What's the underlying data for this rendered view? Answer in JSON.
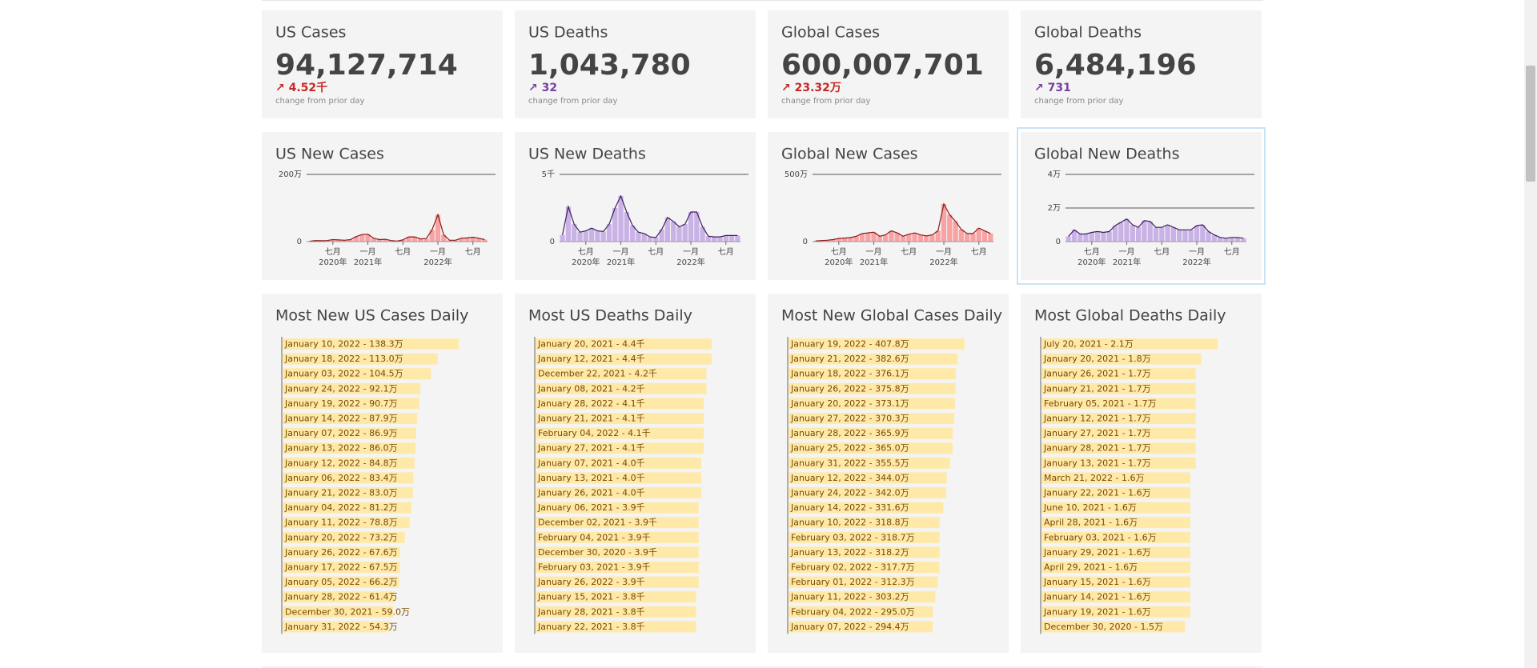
{
  "kpis": [
    {
      "title": "US Cases",
      "value": "94,127,714",
      "change": "↗ 4.52千",
      "note": "change from prior day",
      "color": "#c62828"
    },
    {
      "title": "US Deaths",
      "value": "1,043,780",
      "change": "↗ 32",
      "note": "change from prior day",
      "color": "#7b3fa0"
    },
    {
      "title": "Global Cases",
      "value": "600,007,701",
      "change": "↗ 23.32万",
      "note": "change from prior day",
      "color": "#c62828"
    },
    {
      "title": "Global Deaths",
      "value": "6,484,196",
      "change": "↗ 731",
      "note": "change from prior day",
      "color": "#7b3fa0"
    }
  ],
  "chart_data": [
    {
      "type": "bar",
      "title": "US New Cases",
      "color": "#f7a3a3",
      "line_color": "#8b1a1a",
      "x": [
        "2020-03",
        "2020-04",
        "2020-05",
        "2020-06",
        "2020-07",
        "2020-08",
        "2020-09",
        "2020-10",
        "2020-11",
        "2020-12",
        "2021-01",
        "2021-02",
        "2021-03",
        "2021-04",
        "2021-05",
        "2021-06",
        "2021-07",
        "2021-08",
        "2021-09",
        "2021-10",
        "2021-11",
        "2021-12",
        "2022-01",
        "2022-02",
        "2022-03",
        "2022-04",
        "2022-05",
        "2022-06",
        "2022-07",
        "2022-08",
        "2022-09"
      ],
      "values": [
        1,
        3,
        2.5,
        3,
        6,
        5,
        4,
        6,
        15,
        21,
        22,
        10,
        6,
        7,
        3,
        1.5,
        5,
        14,
        14,
        8,
        9,
        35,
        80,
        20,
        4,
        4,
        10,
        11,
        13,
        10,
        6
      ],
      "ylim": [
        0,
        200
      ],
      "yticks": [
        0,
        {
          "value": 200,
          "label": "200万"
        }
      ],
      "xticks": [
        {
          "value": "2020-07",
          "label": "七月",
          "year": "2020年"
        },
        {
          "value": "2021-01",
          "label": "一月",
          "year": "2021年"
        },
        {
          "value": "2021-07",
          "label": "七月"
        },
        {
          "value": "2022-01",
          "label": "一月",
          "year": "2022年"
        },
        {
          "value": "2022-07",
          "label": "七月"
        }
      ]
    },
    {
      "type": "bar",
      "title": "US New Deaths",
      "color": "#c9b3e6",
      "line_color": "#3d1f5c",
      "x": [
        "2020-03",
        "2020-04",
        "2020-05",
        "2020-06",
        "2020-07",
        "2020-08",
        "2020-09",
        "2020-10",
        "2020-11",
        "2020-12",
        "2021-01",
        "2021-02",
        "2021-03",
        "2021-04",
        "2021-05",
        "2021-06",
        "2021-07",
        "2021-08",
        "2021-09",
        "2021-10",
        "2021-11",
        "2021-12",
        "2022-01",
        "2022-02",
        "2022-03",
        "2022-04",
        "2022-05",
        "2022-06",
        "2022-07",
        "2022-08",
        "2022-09"
      ],
      "values": [
        0.5,
        2.6,
        1.3,
        0.7,
        0.8,
        1.0,
        0.8,
        0.75,
        1.3,
        2.5,
        3.4,
        2.2,
        1.2,
        0.7,
        0.6,
        0.35,
        0.3,
        0.9,
        1.8,
        1.5,
        1.1,
        1.3,
        2.2,
        2.2,
        1.1,
        0.4,
        0.35,
        0.35,
        0.45,
        0.45,
        0.45
      ],
      "ylim": [
        0,
        5
      ],
      "yticks": [
        0,
        {
          "value": 5,
          "label": "5千"
        }
      ],
      "xticks": [
        {
          "value": "2020-07",
          "label": "七月",
          "year": "2020年"
        },
        {
          "value": "2021-01",
          "label": "一月",
          "year": "2021年"
        },
        {
          "value": "2021-07",
          "label": "七月"
        },
        {
          "value": "2022-01",
          "label": "一月",
          "year": "2022年"
        },
        {
          "value": "2022-07",
          "label": "七月"
        }
      ]
    },
    {
      "type": "bar",
      "title": "Global New Cases",
      "color": "#f7a3a3",
      "line_color": "#8b1a1a",
      "x": [
        "2020-03",
        "2020-04",
        "2020-05",
        "2020-06",
        "2020-07",
        "2020-08",
        "2020-09",
        "2020-10",
        "2020-11",
        "2020-12",
        "2021-01",
        "2021-02",
        "2021-03",
        "2021-04",
        "2021-05",
        "2021-06",
        "2021-07",
        "2021-08",
        "2021-09",
        "2021-10",
        "2021-11",
        "2021-12",
        "2022-01",
        "2022-02",
        "2022-03",
        "2022-04",
        "2022-05",
        "2022-06",
        "2022-07",
        "2022-08",
        "2022-09"
      ],
      "values": [
        5,
        8,
        10,
        15,
        24,
        26,
        30,
        40,
        60,
        65,
        70,
        40,
        50,
        80,
        65,
        40,
        55,
        65,
        50,
        42,
        50,
        80,
        280,
        200,
        150,
        90,
        60,
        60,
        100,
        80,
        60
      ],
      "ylim": [
        0,
        500
      ],
      "yticks": [
        0,
        {
          "value": 500,
          "label": "500万"
        }
      ],
      "xticks": [
        {
          "value": "2020-07",
          "label": "七月",
          "year": "2020年"
        },
        {
          "value": "2021-01",
          "label": "一月",
          "year": "2021年"
        },
        {
          "value": "2021-07",
          "label": "七月"
        },
        {
          "value": "2022-01",
          "label": "一月",
          "year": "2022年"
        },
        {
          "value": "2022-07",
          "label": "七月"
        }
      ]
    },
    {
      "type": "bar",
      "title": "Global New Deaths",
      "color": "#c9b3e6",
      "line_color": "#3d1f5c",
      "x": [
        "2020-03",
        "2020-04",
        "2020-05",
        "2020-06",
        "2020-07",
        "2020-08",
        "2020-09",
        "2020-10",
        "2020-11",
        "2020-12",
        "2021-01",
        "2021-02",
        "2021-03",
        "2021-04",
        "2021-05",
        "2021-06",
        "2021-07",
        "2021-08",
        "2021-09",
        "2021-10",
        "2021-11",
        "2021-12",
        "2022-01",
        "2022-02",
        "2022-03",
        "2022-04",
        "2022-05",
        "2022-06",
        "2022-07",
        "2022-08",
        "2022-09"
      ],
      "values": [
        0.3,
        0.7,
        0.45,
        0.45,
        0.55,
        0.6,
        0.55,
        0.6,
        0.95,
        1.15,
        1.35,
        1.0,
        0.85,
        1.25,
        1.2,
        0.85,
        0.85,
        1.0,
        0.85,
        0.7,
        0.7,
        0.7,
        0.95,
        1.0,
        0.6,
        0.4,
        0.25,
        0.2,
        0.25,
        0.25,
        0.2
      ],
      "ylim": [
        0,
        4
      ],
      "yticks": [
        0,
        {
          "value": 2,
          "label": "2万"
        },
        {
          "value": 4,
          "label": "4万"
        }
      ],
      "xticks": [
        {
          "value": "2020-07",
          "label": "七月",
          "year": "2020年"
        },
        {
          "value": "2021-01",
          "label": "一月",
          "year": "2021年"
        },
        {
          "value": "2021-07",
          "label": "七月"
        },
        {
          "value": "2022-01",
          "label": "一月",
          "year": "2022年"
        },
        {
          "value": "2022-07",
          "label": "七月"
        }
      ]
    },
    {
      "type": "hbar",
      "title": "Most New US Cases Daily",
      "color": "#ffe9a8",
      "categories": [
        "January 10, 2022 - 138.3万",
        "January 18, 2022 - 113.0万",
        "January 03, 2022 - 104.5万",
        "January 24, 2022 - 92.1万",
        "January 19, 2022 - 90.7万",
        "January 14, 2022 - 87.9万",
        "January 07, 2022 - 86.9万",
        "January 13, 2022 - 86.0万",
        "January 12, 2022 - 84.8万",
        "January 06, 2022 - 83.4万",
        "January 21, 2022 - 83.0万",
        "January 04, 2022 - 81.2万",
        "January 11, 2022 - 78.8万",
        "January 20, 2022 - 73.2万",
        "January 26, 2022 - 67.6万",
        "January 17, 2022 - 67.5万",
        "January 05, 2022 - 66.2万",
        "January 28, 2022 - 61.4万",
        "December 30, 2021 - 59.0万",
        "January 31, 2022 - 54.3万"
      ],
      "values": [
        138.3,
        113.0,
        104.5,
        92.1,
        90.7,
        87.9,
        86.9,
        86.0,
        84.8,
        83.4,
        83.0,
        81.2,
        78.8,
        73.2,
        67.6,
        67.5,
        66.2,
        61.4,
        59.0,
        54.3
      ]
    },
    {
      "type": "hbar",
      "title": "Most US Deaths Daily",
      "color": "#ffe9a8",
      "categories": [
        "January 20, 2021 - 4.4千",
        "January 12, 2021 - 4.4千",
        "December 22, 2021 - 4.2千",
        "January 08, 2021 - 4.2千",
        "January 28, 2022 - 4.1千",
        "January 21, 2021 - 4.1千",
        "February 04, 2022 - 4.1千",
        "January 27, 2021 - 4.1千",
        "January 07, 2021 - 4.0千",
        "January 13, 2021 - 4.0千",
        "January 26, 2021 - 4.0千",
        "January 06, 2021 - 3.9千",
        "December 02, 2021 - 3.9千",
        "February 04, 2021 - 3.9千",
        "December 30, 2020 - 3.9千",
        "February 03, 2021 - 3.9千",
        "January 26, 2022 - 3.9千",
        "January 15, 2021 - 3.8千",
        "January 28, 2021 - 3.8千",
        "January 22, 2021 - 3.8千"
      ],
      "values": [
        4.4,
        4.4,
        4.2,
        4.2,
        4.1,
        4.1,
        4.1,
        4.1,
        4.0,
        4.0,
        4.0,
        3.9,
        3.9,
        3.9,
        3.9,
        3.9,
        3.9,
        3.8,
        3.8,
        3.8
      ]
    },
    {
      "type": "hbar",
      "title": "Most New Global Cases Daily",
      "color": "#ffe9a8",
      "categories": [
        "January 19, 2022 - 407.8万",
        "January 21, 2022 - 382.6万",
        "January 18, 2022 - 376.1万",
        "January 26, 2022 - 375.8万",
        "January 20, 2022 - 373.1万",
        "January 27, 2022 - 370.3万",
        "January 28, 2022 - 365.9万",
        "January 25, 2022 - 365.0万",
        "January 31, 2022 - 355.5万",
        "January 12, 2022 - 344.0万",
        "January 24, 2022 - 342.0万",
        "January 14, 2022 - 331.6万",
        "January 10, 2022 - 318.8万",
        "February 03, 2022 - 318.7万",
        "January 13, 2022 - 318.2万",
        "February 02, 2022 - 317.7万",
        "February 01, 2022 - 312.3万",
        "January 11, 2022 - 303.2万",
        "February 04, 2022 - 295.0万",
        "January 07, 2022 - 294.4万"
      ],
      "values": [
        407.8,
        382.6,
        376.1,
        375.8,
        373.1,
        370.3,
        365.9,
        365.0,
        355.5,
        344.0,
        342.0,
        331.6,
        318.8,
        318.7,
        318.2,
        317.7,
        312.3,
        303.2,
        295.0,
        294.4
      ]
    },
    {
      "type": "hbar",
      "title": "Most Global Deaths Daily",
      "color": "#ffe9a8",
      "categories": [
        "July 20, 2021 - 2.1万",
        "January 20, 2021 - 1.8万",
        "January 26, 2021 - 1.7万",
        "January 21, 2021 - 1.7万",
        "February 05, 2021 - 1.7万",
        "January 12, 2021 - 1.7万",
        "January 27, 2021 - 1.7万",
        "January 28, 2021 - 1.7万",
        "January 13, 2021 - 1.7万",
        "March 21, 2022 - 1.6万",
        "January 22, 2021 - 1.6万",
        "June 10, 2021 - 1.6万",
        "April 28, 2021 - 1.6万",
        "February 03, 2021 - 1.6万",
        "January 29, 2021 - 1.6万",
        "April 29, 2021 - 1.6万",
        "January 15, 2021 - 1.6万",
        "January 14, 2021 - 1.6万",
        "January 19, 2021 - 1.6万",
        "December 30, 2020 - 1.5万"
      ],
      "values": [
        2.1,
        1.8,
        1.7,
        1.7,
        1.7,
        1.7,
        1.7,
        1.7,
        1.7,
        1.6,
        1.6,
        1.6,
        1.6,
        1.6,
        1.6,
        1.6,
        1.6,
        1.6,
        1.6,
        1.5
      ]
    }
  ]
}
